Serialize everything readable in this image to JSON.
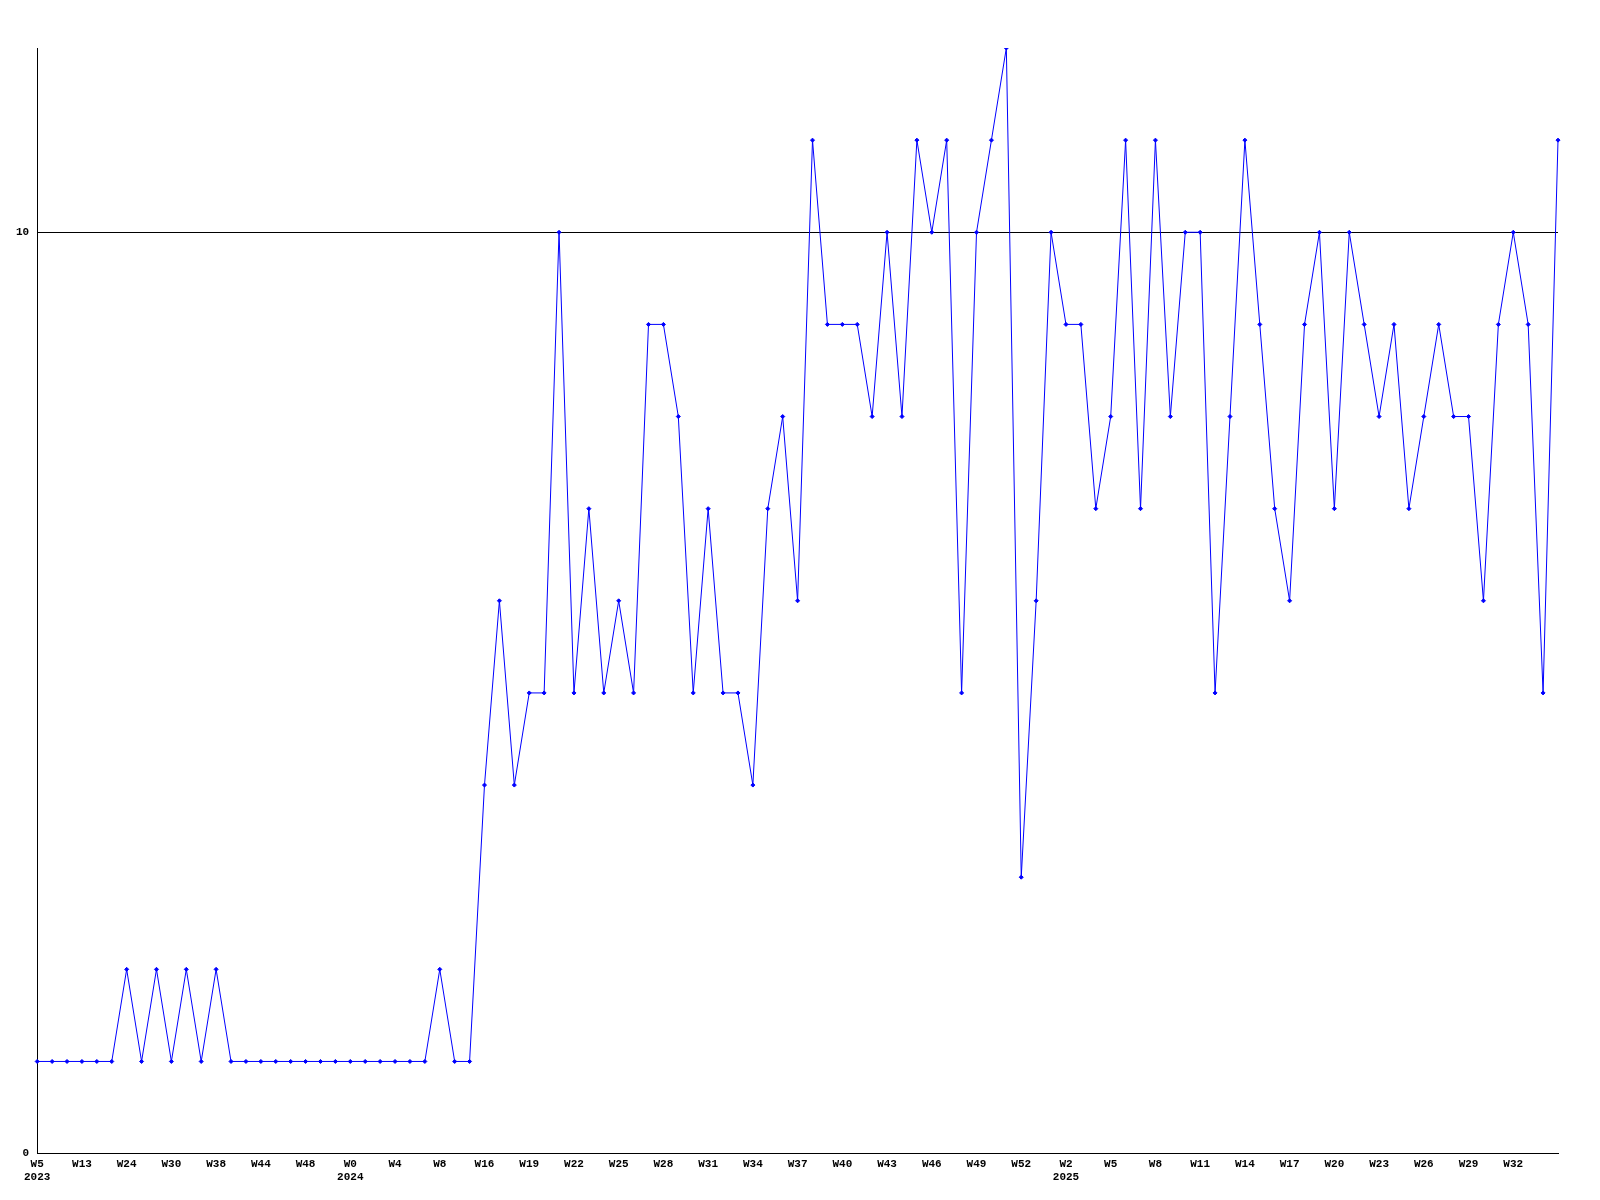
{
  "chart_data": {
    "type": "line",
    "categories": [
      "W5\n2023",
      null,
      null,
      "W13",
      null,
      null,
      "W24",
      null,
      null,
      "W30",
      null,
      null,
      "W38",
      null,
      null,
      "W44",
      null,
      null,
      "W48",
      null,
      null,
      "W0\n2024",
      null,
      null,
      "W4",
      null,
      null,
      "W8",
      null,
      null,
      "W16",
      null,
      null,
      "W19",
      null,
      null,
      "W22",
      null,
      null,
      "W25",
      null,
      null,
      "W28",
      null,
      null,
      "W31",
      null,
      null,
      "W34",
      null,
      null,
      "W37",
      null,
      null,
      "W40",
      null,
      null,
      "W43",
      null,
      null,
      "W46",
      null,
      null,
      "W49",
      null,
      null,
      "W52",
      null,
      null,
      "W2\n2025",
      null,
      null,
      "W5",
      null,
      null,
      "W8",
      null,
      null,
      "W11",
      null,
      null,
      "W14",
      null,
      null,
      "W17",
      null,
      null,
      "W20",
      null,
      null,
      "W23",
      null,
      null,
      "W26",
      null,
      null,
      "W29",
      null,
      null,
      "W32",
      null,
      null,
      null
    ],
    "series": [
      {
        "color": "#0000ff",
        "values": [
          1,
          1,
          1,
          1,
          1,
          1,
          2,
          1,
          2,
          1,
          2,
          1,
          2,
          1,
          1,
          1,
          1,
          1,
          1,
          1,
          1,
          1,
          1,
          1,
          1,
          1,
          1,
          2,
          1,
          1,
          4,
          6,
          4,
          5,
          5,
          10,
          5,
          7,
          5,
          6,
          5,
          9,
          9,
          8,
          5,
          7,
          5,
          5,
          4,
          7,
          8,
          6,
          11,
          9,
          9,
          9,
          8,
          10,
          8,
          11,
          10,
          11,
          5,
          10,
          11,
          12,
          3,
          6,
          10,
          9,
          9,
          7,
          8,
          11,
          7,
          11,
          8,
          10,
          10,
          5,
          8,
          11,
          9,
          7,
          6,
          9,
          10,
          7,
          10,
          9,
          8,
          9,
          7,
          8,
          9,
          8,
          8,
          6,
          9,
          10,
          9,
          5,
          11
        ]
      }
    ],
    "ylim": [
      0,
      12
    ],
    "yticks": [
      0,
      10
    ],
    "grid": "y",
    "marker": "diamond",
    "line_style": "solid"
  }
}
